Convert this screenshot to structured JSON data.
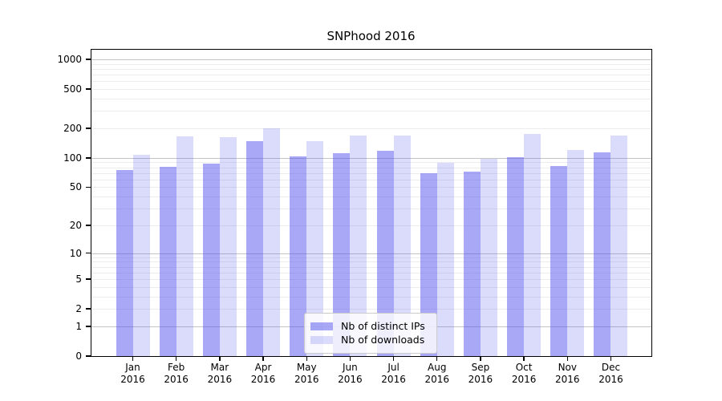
{
  "title": "SNPhood 2016",
  "colors": {
    "background": "#ffffff",
    "axis": "#000000",
    "text": "#000000",
    "grid_major": "#c4c4c4",
    "grid_minor": "#ececec",
    "legend_border": "#cccccc",
    "bar_distinct_ips": "rgba(85,85,238,0.51)",
    "bar_downloads": "rgba(85,85,238,0.21)"
  },
  "chart_data": {
    "type": "bar",
    "title": "SNPhood 2016",
    "categories": [
      "Jan 2016",
      "Feb 2016",
      "Mar 2016",
      "Apr 2016",
      "May 2016",
      "Jun 2016",
      "Jul 2016",
      "Aug 2016",
      "Sep 2016",
      "Oct 2016",
      "Nov 2016",
      "Dec 2016"
    ],
    "series": [
      {
        "name": "Nb of distinct IPs",
        "color": "rgba(85,85,238,0.51)",
        "values": [
          75,
          81,
          88,
          148,
          104,
          112,
          118,
          70,
          73,
          101,
          82,
          113
        ]
      },
      {
        "name": "Nb of downloads",
        "color": "rgba(85,85,238,0.21)",
        "values": [
          107,
          165,
          163,
          200,
          148,
          170,
          170,
          90,
          98,
          175,
          120,
          168
        ]
      }
    ],
    "xlabel": "",
    "ylabel": "",
    "yscale": "log1p",
    "yticks": [
      0,
      1,
      2,
      5,
      10,
      20,
      50,
      100,
      200,
      500,
      1000
    ],
    "ylim": [
      0,
      1254
    ],
    "grid": true,
    "legend_position": "lower center"
  }
}
